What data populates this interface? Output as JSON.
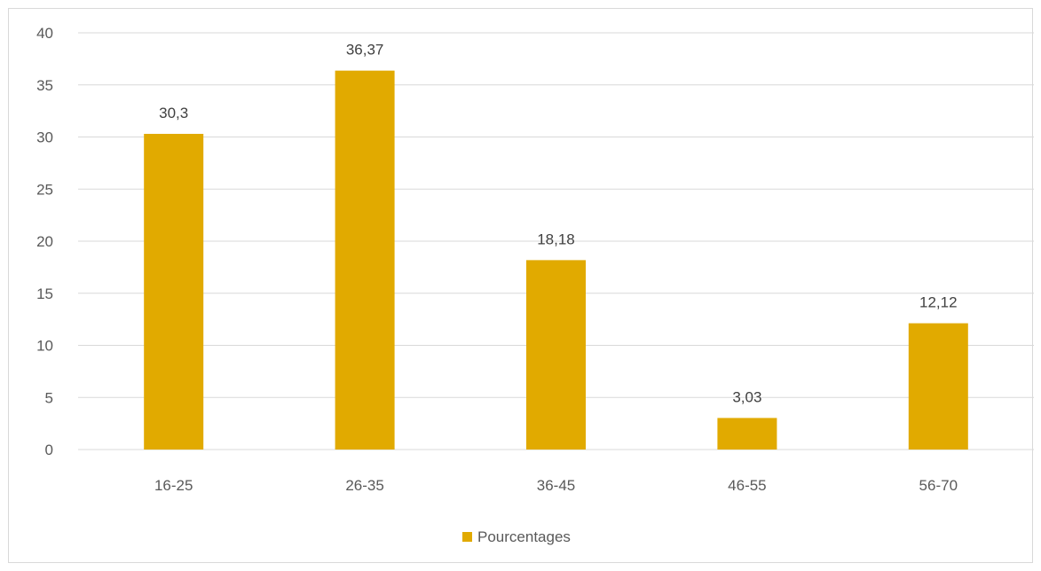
{
  "chart_data": {
    "type": "bar",
    "title": "",
    "xlabel": "",
    "ylabel": "",
    "categories": [
      "16-25",
      "26-35",
      "36-45",
      "46-55",
      "56-70"
    ],
    "series": [
      {
        "name": "Pourcentages",
        "values": [
          30.3,
          36.37,
          18.18,
          3.03,
          12.12
        ],
        "data_labels": [
          "30,3",
          "36,37",
          "18,18",
          "3,03",
          "12,12"
        ],
        "color": "#e1aa00"
      }
    ],
    "ylim": [
      0,
      40
    ],
    "yticks": [
      0,
      5,
      10,
      15,
      20,
      25,
      30,
      35,
      40
    ],
    "grid": true,
    "legend_position": "bottom",
    "gridline_color": "#d9d9d9",
    "axis_color": "#d9d9d9"
  }
}
